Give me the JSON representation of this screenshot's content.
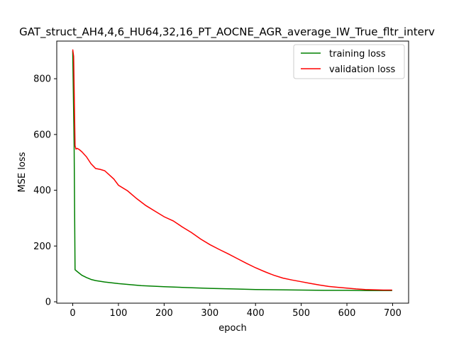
{
  "chart_data": {
    "type": "line",
    "title": "GAT_struct_AH4,4,6_HU64,32,16_PT_AOCNE_AGR_average_IW_True_fltr_interv",
    "xlabel": "epoch",
    "ylabel": "MSE loss",
    "xlim": [
      -35,
      735
    ],
    "ylim": [
      -5,
      935
    ],
    "xticks": [
      0,
      100,
      200,
      300,
      400,
      500,
      600,
      700
    ],
    "yticks": [
      0,
      200,
      400,
      600,
      800
    ],
    "legend_position": "upper-right",
    "grid": false,
    "series": [
      {
        "name": "training loss",
        "color": "#008000",
        "points": [
          [
            0,
            900
          ],
          [
            3,
            560
          ],
          [
            5,
            115
          ],
          [
            10,
            108
          ],
          [
            20,
            95
          ],
          [
            30,
            87
          ],
          [
            40,
            80
          ],
          [
            50,
            76
          ],
          [
            70,
            71
          ],
          [
            100,
            65
          ],
          [
            150,
            58
          ],
          [
            200,
            54
          ],
          [
            250,
            51
          ],
          [
            300,
            48
          ],
          [
            350,
            46
          ],
          [
            400,
            44
          ],
          [
            450,
            43
          ],
          [
            500,
            42
          ],
          [
            550,
            41
          ],
          [
            600,
            41
          ],
          [
            650,
            40
          ],
          [
            699,
            40
          ]
        ]
      },
      {
        "name": "validation loss",
        "color": "#ff0000",
        "points": [
          [
            0,
            905
          ],
          [
            2,
            880
          ],
          [
            5,
            560
          ],
          [
            7,
            548
          ],
          [
            10,
            550
          ],
          [
            15,
            545
          ],
          [
            20,
            538
          ],
          [
            30,
            520
          ],
          [
            40,
            495
          ],
          [
            50,
            478
          ],
          [
            60,
            475
          ],
          [
            70,
            470
          ],
          [
            80,
            455
          ],
          [
            90,
            440
          ],
          [
            100,
            418
          ],
          [
            120,
            398
          ],
          [
            140,
            370
          ],
          [
            160,
            345
          ],
          [
            180,
            325
          ],
          [
            200,
            305
          ],
          [
            220,
            290
          ],
          [
            240,
            268
          ],
          [
            260,
            248
          ],
          [
            280,
            225
          ],
          [
            300,
            205
          ],
          [
            320,
            188
          ],
          [
            340,
            172
          ],
          [
            360,
            155
          ],
          [
            380,
            138
          ],
          [
            400,
            122
          ],
          [
            420,
            108
          ],
          [
            440,
            95
          ],
          [
            460,
            85
          ],
          [
            480,
            78
          ],
          [
            500,
            72
          ],
          [
            520,
            66
          ],
          [
            540,
            60
          ],
          [
            560,
            55
          ],
          [
            580,
            52
          ],
          [
            600,
            49
          ],
          [
            620,
            46
          ],
          [
            640,
            44
          ],
          [
            660,
            43
          ],
          [
            680,
            42
          ],
          [
            699,
            42
          ]
        ]
      }
    ]
  }
}
